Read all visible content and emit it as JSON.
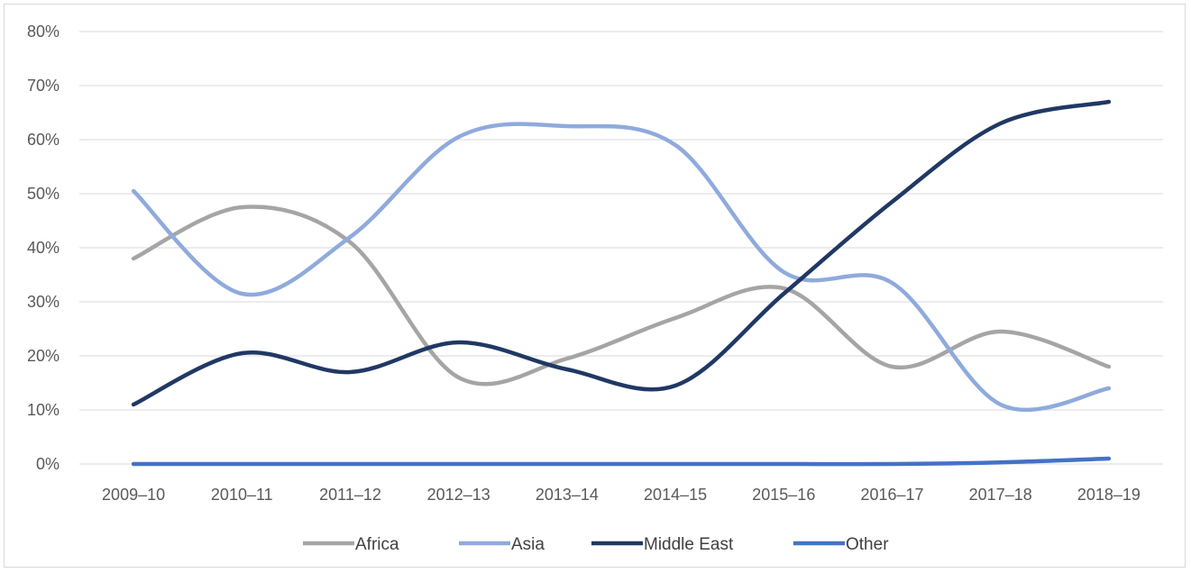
{
  "chart_data": {
    "type": "line",
    "title": "",
    "xlabel": "",
    "ylabel": "",
    "categories": [
      "2009–10",
      "2010–11",
      "2011–12",
      "2012–13",
      "2013–14",
      "2014–15",
      "2015–16",
      "2016–17",
      "2017–18",
      "2018–19"
    ],
    "ylim": [
      0,
      80
    ],
    "yticks": [
      "0%",
      "10%",
      "20%",
      "30%",
      "40%",
      "50%",
      "60%",
      "70%",
      "80%"
    ],
    "grid": true,
    "smooth": true,
    "legend_position": "bottom",
    "series": [
      {
        "name": "Africa",
        "color": "#a5a5a5",
        "values": [
          38,
          47.5,
          41,
          16,
          19.5,
          27,
          32.5,
          18,
          24.5,
          18
        ]
      },
      {
        "name": "Asia",
        "color": "#8faadc",
        "values": [
          50.5,
          31.5,
          42,
          60.5,
          62.5,
          59,
          35.5,
          33.5,
          11,
          14
        ]
      },
      {
        "name": "Middle East",
        "color": "#203864",
        "values": [
          11,
          20.5,
          17,
          22.5,
          17.5,
          14.5,
          31.5,
          48.5,
          63,
          67
        ]
      },
      {
        "name": "Other",
        "color": "#4472c4",
        "values": [
          0,
          0,
          0,
          0,
          0,
          0,
          0,
          0,
          0.3,
          1
        ]
      }
    ]
  }
}
